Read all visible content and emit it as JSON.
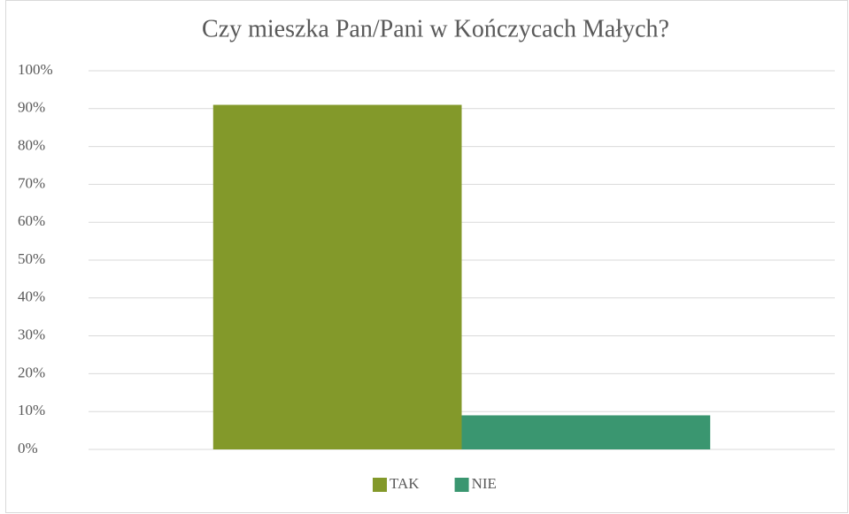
{
  "chart_data": {
    "type": "bar",
    "title": "Czy mieszka Pan/Pani w Kończycach Małych?",
    "categories": [
      null
    ],
    "series": [
      {
        "name": "TAK",
        "color": "#83992a",
        "values": [
          91
        ]
      },
      {
        "name": "NIE",
        "color": "#3a9670",
        "values": [
          9
        ]
      }
    ],
    "ylim": [
      0,
      100
    ],
    "yticks": [
      {
        "value": 0,
        "label": "0%"
      },
      {
        "value": 10,
        "label": "10%"
      },
      {
        "value": 20,
        "label": "20%"
      },
      {
        "value": 30,
        "label": "30%"
      },
      {
        "value": 40,
        "label": "40%"
      },
      {
        "value": 50,
        "label": "50%"
      },
      {
        "value": 60,
        "label": "60%"
      },
      {
        "value": 70,
        "label": "70%"
      },
      {
        "value": 80,
        "label": "80%"
      },
      {
        "value": 90,
        "label": "90%"
      },
      {
        "value": 100,
        "label": "100%"
      }
    ],
    "grid": true,
    "legend": "bottom"
  }
}
